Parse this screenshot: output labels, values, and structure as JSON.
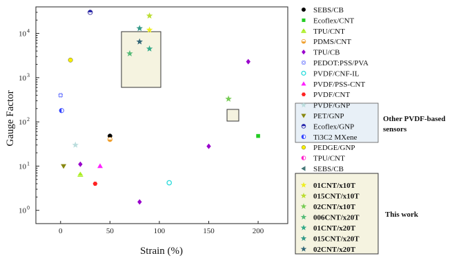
{
  "chart_data": {
    "type": "scatter",
    "xlabel": "Strain (%)",
    "ylabel": "Gauge Factor",
    "xlim": [
      -25,
      230
    ],
    "ylim_log10": [
      -0.3,
      4.6
    ],
    "y_scale": "log",
    "x_ticks": [
      0,
      50,
      100,
      150,
      200
    ],
    "y_ticks": [
      {
        "value": 1,
        "base": "10",
        "exp": "0"
      },
      {
        "value": 10,
        "base": "10",
        "exp": "1"
      },
      {
        "value": 100,
        "base": "10",
        "exp": "2"
      },
      {
        "value": 1000,
        "base": "10",
        "exp": "3"
      },
      {
        "value": 10000,
        "base": "10",
        "exp": "4"
      }
    ],
    "legend_position": "right",
    "series": [
      {
        "name": "SEBS/CB",
        "marker": "circle",
        "color": "#000000",
        "points": [
          [
            50,
            48
          ]
        ]
      },
      {
        "name": "Ecoflex/CNT",
        "marker": "square",
        "color": "#22cc22",
        "points": [
          [
            200,
            48
          ]
        ]
      },
      {
        "name": "TPU/CNT",
        "marker": "tri-up-line",
        "color": "#aaee22",
        "points": [
          [
            20,
            6.5
          ]
        ]
      },
      {
        "name": "PDMS/CNT",
        "marker": "circle-half-bottom",
        "color": "#f0a030",
        "points": [
          [
            50,
            40
          ],
          [
            30,
            30000
          ]
        ]
      },
      {
        "name": "TPU/CB",
        "marker": "diamond",
        "color": "#9900cc",
        "points": [
          [
            20,
            11
          ],
          [
            80,
            1.55
          ],
          [
            150,
            28
          ],
          [
            190,
            2300
          ]
        ]
      },
      {
        "name": "PEDOT:PSS/PVA",
        "marker": "square-x",
        "color": "#3344ff",
        "points": [
          [
            0,
            400
          ]
        ]
      },
      {
        "name": "PVDF/CNF-IL",
        "marker": "circle-open",
        "color": "#33dddd",
        "points": [
          [
            110,
            4.2
          ]
        ]
      },
      {
        "name": "PVDF/PSS-CNT",
        "marker": "tri-up",
        "color": "#ff22ff",
        "points": [
          [
            40,
            10
          ]
        ]
      },
      {
        "name": "PVDF/CNT",
        "marker": "hexagon",
        "color": "#ff2222",
        "points": [
          [
            35,
            4
          ]
        ]
      },
      {
        "name": "PVDF/GNP",
        "marker": "star",
        "color": "#bbdddd",
        "points": [
          [
            15,
            30
          ]
        ]
      },
      {
        "name": "PET/GNP",
        "marker": "tri-down",
        "color": "#888811",
        "points": [
          [
            3,
            10
          ]
        ]
      },
      {
        "name": "Ecoflex/GNP",
        "marker": "circle-half-top",
        "color": "#2222aa",
        "points": [
          [
            30,
            30000
          ]
        ]
      },
      {
        "name": "Ti3C2 MXene",
        "marker": "circle-half-left",
        "color": "#3344ff",
        "points": [
          [
            1,
            180
          ]
        ]
      },
      {
        "name": "PEDGE/GNP",
        "marker": "circle",
        "color": "#f8f000",
        "points": [
          [
            10,
            2500
          ]
        ]
      },
      {
        "name": "TPU/CNT",
        "marker": "circle-half-left",
        "color": "#ff22cc",
        "points": []
      },
      {
        "name": "SEBS/CB",
        "marker": "tri-left",
        "color": "#447777",
        "points": []
      },
      {
        "name": "01CNT/x10T",
        "marker": "star",
        "color": "#eeee22",
        "points": [
          [
            90,
            12000
          ]
        ]
      },
      {
        "name": "015CNT/x10T",
        "marker": "star",
        "color": "#bbdd33",
        "points": [
          [
            90,
            25000
          ]
        ]
      },
      {
        "name": "02CNT/x10T",
        "marker": "star",
        "color": "#77cc55",
        "points": [
          [
            170,
            330
          ]
        ]
      },
      {
        "name": "006CNT/x20T",
        "marker": "star",
        "color": "#55bb77",
        "points": [
          [
            70,
            3500
          ]
        ]
      },
      {
        "name": "01CNT/x20T",
        "marker": "star",
        "color": "#33aa88",
        "points": [
          [
            90,
            4500
          ]
        ]
      },
      {
        "name": "015CNT/x20T",
        "marker": "star",
        "color": "#339988",
        "points": [
          [
            80,
            13000
          ]
        ]
      },
      {
        "name": "02CNT/x20T",
        "marker": "star",
        "color": "#336677",
        "points": [
          [
            80,
            6500
          ]
        ]
      }
    ],
    "annotations": {
      "pvdf_group_label": "Other PVDF-based sensors",
      "this_work_label": "This work"
    },
    "colors": {
      "highlight_box_fill": "#f5f3e0",
      "pvdf_box_fill": "#e8f0f7"
    }
  }
}
